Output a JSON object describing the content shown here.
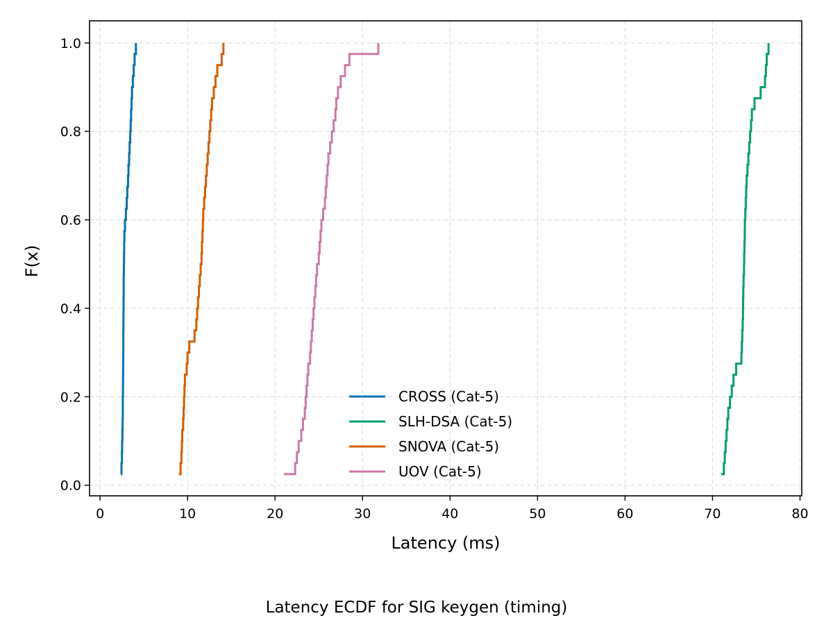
{
  "caption": "Latency ECDF for SIG keygen (timing)",
  "chart_data": {
    "type": "line",
    "step": true,
    "xlabel": "Latency (ms)",
    "ylabel": "F(x)",
    "xlim": [
      -1.2,
      80.2
    ],
    "ylim": [
      -0.024,
      1.05
    ],
    "xticks": [
      0,
      10,
      20,
      30,
      40,
      50,
      60,
      70,
      80
    ],
    "yticks": [
      0.0,
      0.2,
      0.4,
      0.6,
      0.8,
      1.0
    ],
    "xtick_labels": [
      "0",
      "10",
      "20",
      "30",
      "40",
      "50",
      "60",
      "70",
      "80"
    ],
    "ytick_labels": [
      "0.0",
      "0.2",
      "0.4",
      "0.6",
      "0.8",
      "1.0"
    ],
    "grid": true,
    "legend_position": "lower-center",
    "series": [
      {
        "name": "CROSS (Cat-5)",
        "color": "#0072B2",
        "x": [
          2.4,
          2.45,
          2.5,
          2.52,
          2.55,
          2.58,
          2.6,
          2.6,
          2.62,
          2.63,
          2.64,
          2.65,
          2.66,
          2.66,
          2.67,
          2.68,
          2.69,
          2.7,
          2.7,
          2.72,
          2.74,
          2.76,
          2.78,
          2.85,
          2.95,
          3.05,
          3.12,
          3.2,
          3.25,
          3.32,
          3.38,
          3.45,
          3.5,
          3.55,
          3.6,
          3.65,
          3.75,
          3.85,
          3.95,
          4.1
        ],
        "y": [
          0.025,
          0.05,
          0.075,
          0.1,
          0.125,
          0.15,
          0.175,
          0.2,
          0.225,
          0.25,
          0.275,
          0.3,
          0.325,
          0.35,
          0.375,
          0.4,
          0.425,
          0.45,
          0.475,
          0.5,
          0.525,
          0.55,
          0.575,
          0.6,
          0.625,
          0.65,
          0.675,
          0.7,
          0.725,
          0.75,
          0.775,
          0.8,
          0.825,
          0.85,
          0.875,
          0.9,
          0.925,
          0.95,
          0.975,
          1.0
        ]
      },
      {
        "name": "SLH-DSA (Cat-5)",
        "color": "#009E73",
        "x": [
          71.0,
          71.3,
          71.4,
          71.5,
          71.6,
          71.7,
          71.8,
          72.0,
          72.2,
          72.4,
          72.7,
          73.3,
          73.35,
          73.4,
          73.45,
          73.48,
          73.5,
          73.52,
          73.55,
          73.6,
          73.62,
          73.65,
          73.68,
          73.7,
          73.75,
          73.8,
          73.85,
          73.9,
          74.0,
          74.1,
          74.2,
          74.3,
          74.4,
          74.5,
          74.8,
          75.5,
          76.0,
          76.1,
          76.2,
          76.4
        ],
        "y": [
          0.025,
          0.05,
          0.075,
          0.1,
          0.125,
          0.15,
          0.175,
          0.2,
          0.225,
          0.25,
          0.275,
          0.3,
          0.325,
          0.35,
          0.375,
          0.4,
          0.425,
          0.45,
          0.475,
          0.5,
          0.525,
          0.55,
          0.575,
          0.6,
          0.625,
          0.65,
          0.675,
          0.7,
          0.725,
          0.75,
          0.775,
          0.8,
          0.825,
          0.85,
          0.875,
          0.9,
          0.925,
          0.95,
          0.975,
          1.0
        ]
      },
      {
        "name": "SNOVA (Cat-5)",
        "color": "#D55E00",
        "x": [
          9.0,
          9.2,
          9.3,
          9.35,
          9.4,
          9.5,
          9.55,
          9.6,
          9.65,
          9.7,
          9.9,
          10.0,
          10.2,
          10.8,
          11.0,
          11.1,
          11.2,
          11.3,
          11.4,
          11.5,
          11.6,
          11.65,
          11.7,
          11.75,
          11.8,
          11.9,
          12.0,
          12.1,
          12.2,
          12.3,
          12.4,
          12.5,
          12.6,
          12.7,
          12.8,
          13.0,
          13.2,
          13.4,
          13.9,
          14.1
        ],
        "y": [
          0.025,
          0.05,
          0.075,
          0.1,
          0.125,
          0.15,
          0.175,
          0.2,
          0.225,
          0.25,
          0.275,
          0.3,
          0.325,
          0.35,
          0.375,
          0.4,
          0.425,
          0.45,
          0.475,
          0.5,
          0.525,
          0.55,
          0.575,
          0.6,
          0.625,
          0.65,
          0.675,
          0.7,
          0.725,
          0.75,
          0.775,
          0.8,
          0.825,
          0.85,
          0.875,
          0.9,
          0.925,
          0.95,
          0.975,
          1.0
        ]
      },
      {
        "name": "UOV (Cat-5)",
        "color": "#CC79A7",
        "x": [
          21.0,
          22.3,
          22.5,
          22.7,
          23.0,
          23.2,
          23.4,
          23.5,
          23.6,
          23.7,
          23.8,
          24.0,
          24.1,
          24.2,
          24.3,
          24.4,
          24.5,
          24.6,
          24.7,
          24.8,
          25.0,
          25.1,
          25.2,
          25.3,
          25.5,
          25.7,
          25.8,
          25.9,
          26.0,
          26.1,
          26.3,
          26.5,
          26.7,
          26.9,
          27.0,
          27.2,
          27.5,
          28.0,
          28.5,
          31.8
        ],
        "y": [
          0.025,
          0.05,
          0.075,
          0.1,
          0.125,
          0.15,
          0.175,
          0.2,
          0.225,
          0.25,
          0.275,
          0.3,
          0.325,
          0.35,
          0.375,
          0.4,
          0.425,
          0.45,
          0.475,
          0.5,
          0.525,
          0.55,
          0.575,
          0.6,
          0.625,
          0.65,
          0.675,
          0.7,
          0.725,
          0.75,
          0.775,
          0.8,
          0.825,
          0.85,
          0.875,
          0.9,
          0.925,
          0.95,
          0.975,
          1.0
        ]
      }
    ]
  }
}
